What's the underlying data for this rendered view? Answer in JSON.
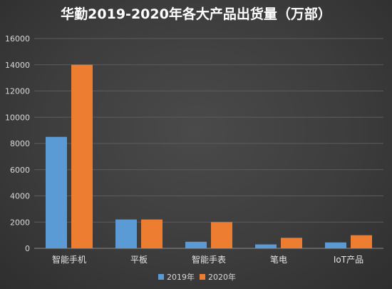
{
  "chart_data": {
    "type": "bar",
    "title": "华勤2019-2020年各大产品出货量（万部）",
    "categories": [
      "智能手机",
      "平板",
      "智能手表",
      "笔电",
      "IoT产品"
    ],
    "series": [
      {
        "name": "2019年",
        "values": [
          8500,
          2200,
          500,
          300,
          450
        ],
        "color": "#5b9bd5"
      },
      {
        "name": "2020年",
        "values": [
          14000,
          2200,
          2000,
          800,
          1000
        ],
        "color": "#ed7d31"
      }
    ],
    "ylim": [
      0,
      16000
    ],
    "yticks": [
      "0",
      "2000",
      "4000",
      "6000",
      "8000",
      "10000",
      "12000",
      "14000",
      "16000"
    ],
    "grid": true,
    "legend": "bottom"
  }
}
